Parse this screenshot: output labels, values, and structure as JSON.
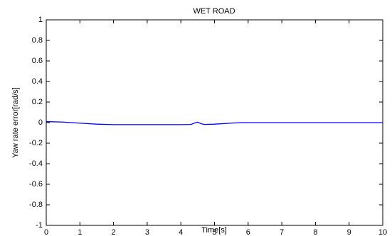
{
  "chart_data": {
    "type": "line",
    "title": "WET ROAD",
    "xlabel": "Time[s]",
    "ylabel": "Yaw rate error[rad/s]",
    "x": [
      0,
      0.5,
      1,
      1.5,
      2,
      2.5,
      3,
      3.5,
      4,
      4.3,
      4.4,
      4.5,
      4.6,
      4.7,
      5,
      5.5,
      5.8,
      6,
      7,
      8,
      9,
      10
    ],
    "series": [
      {
        "color": "#0000ff",
        "values": [
          0.01,
          0.005,
          -0.005,
          -0.015,
          -0.02,
          -0.02,
          -0.02,
          -0.02,
          -0.02,
          -0.018,
          -0.005,
          0.005,
          -0.01,
          -0.018,
          -0.015,
          -0.005,
          0,
          0,
          0,
          0,
          0,
          0
        ]
      }
    ],
    "xlim": [
      0,
      10
    ],
    "xticks": [
      0,
      1,
      2,
      3,
      4,
      5,
      6,
      7,
      8,
      9,
      10
    ],
    "ylim": [
      -1,
      1
    ],
    "yticks": [
      -1,
      -0.8,
      -0.6,
      -0.4,
      -0.2,
      0,
      0.2,
      0.4,
      0.6,
      0.8,
      1
    ],
    "grid": false
  }
}
